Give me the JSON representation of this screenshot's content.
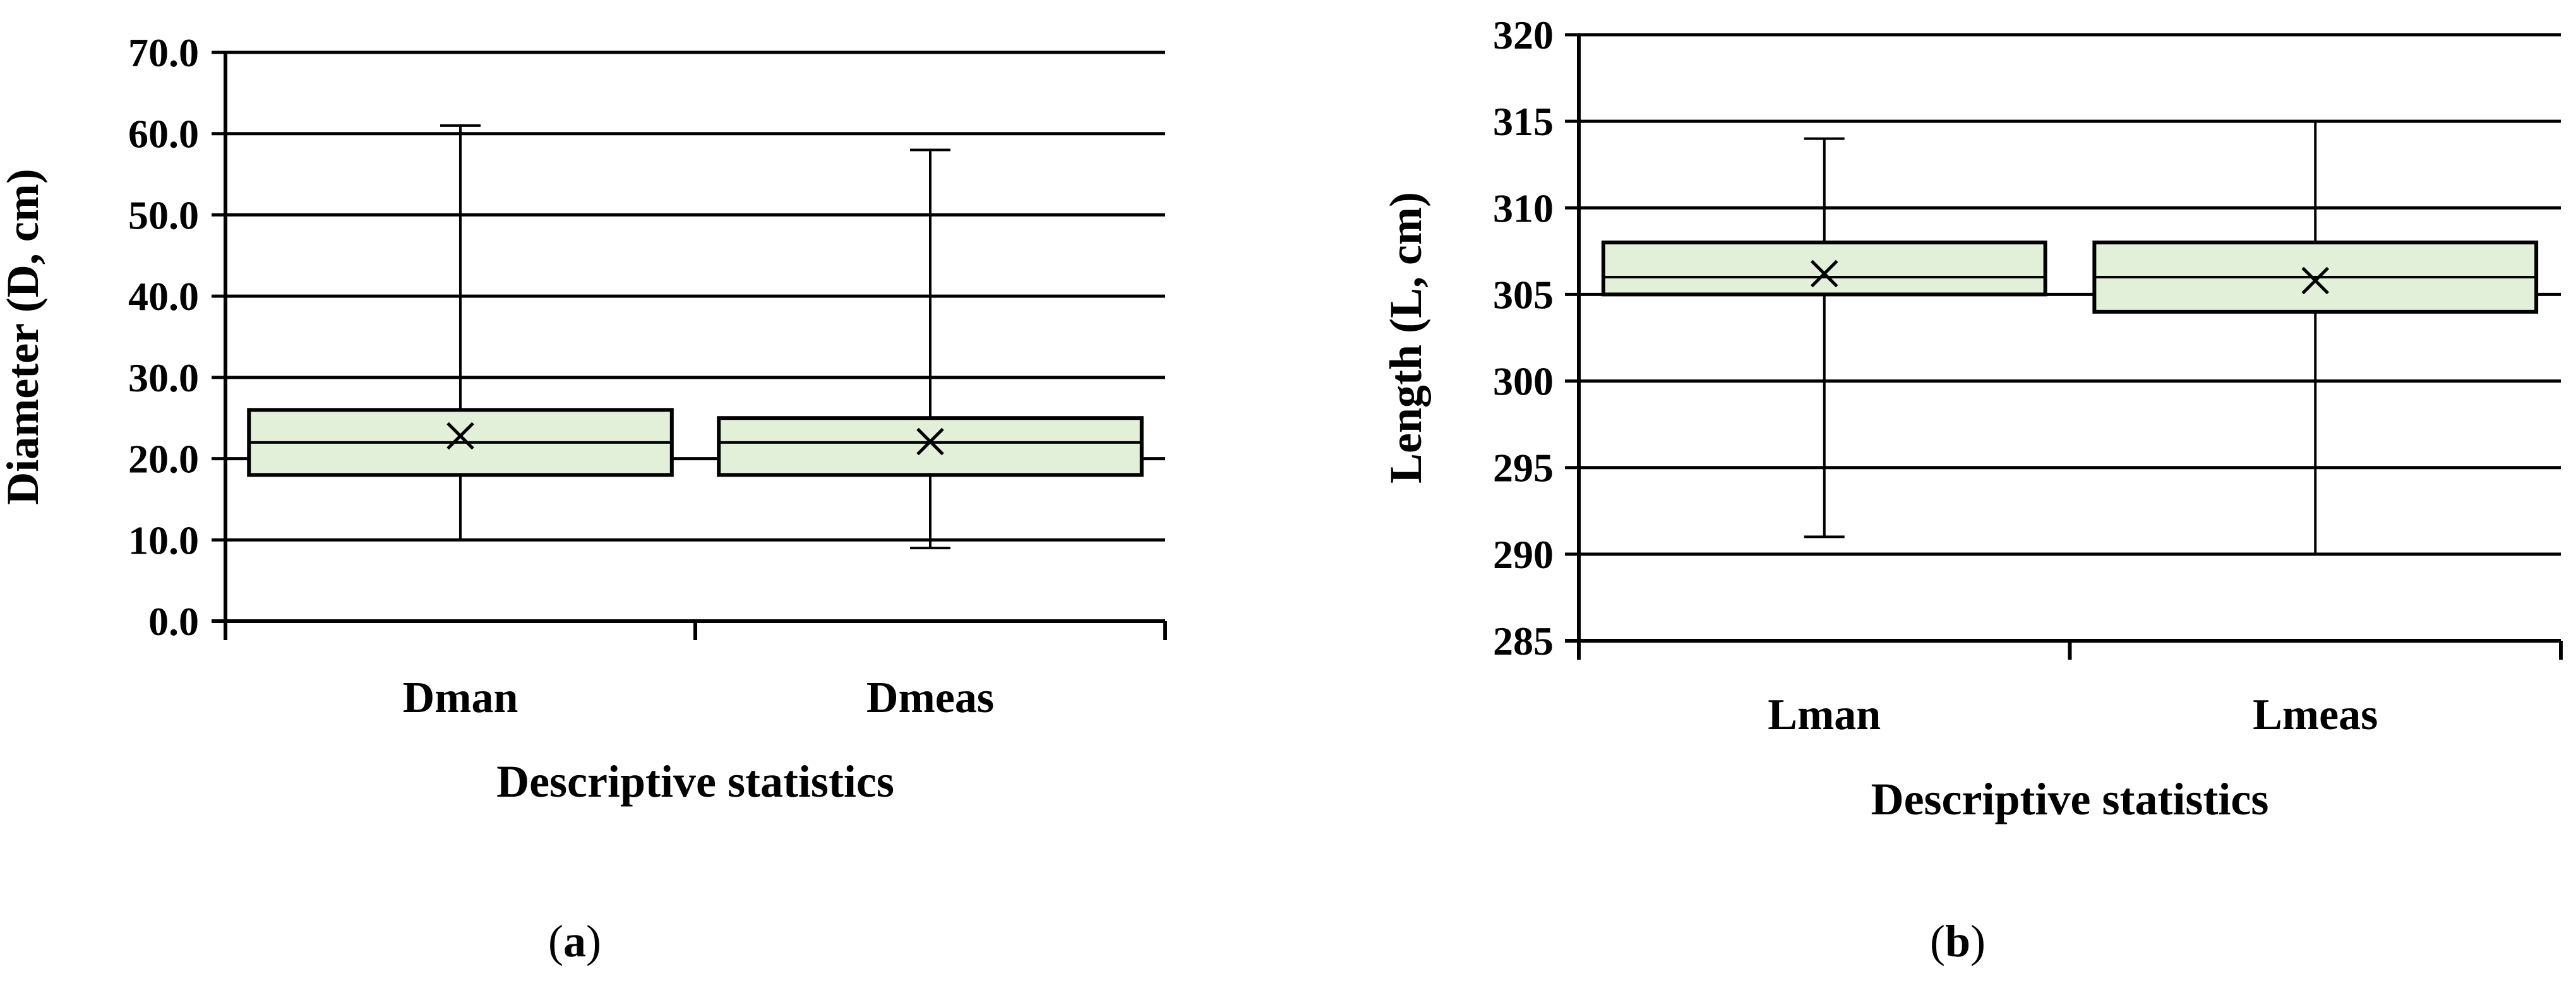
{
  "colors": {
    "box_fill": "#e2efd9",
    "stroke": "#000000",
    "background": "#ffffff"
  },
  "chart_data": [
    {
      "type": "box",
      "panel_label": "a",
      "xlabel": "Descriptive statistics",
      "ylabel": "Diameter (D, cm)",
      "ylim": [
        0,
        70
      ],
      "yticks": [
        "0.0",
        "10.0",
        "20.0",
        "30.0",
        "40.0",
        "50.0",
        "60.0",
        "70.0"
      ],
      "grid": true,
      "categories": [
        "Dman",
        "Dmeas"
      ],
      "boxes": [
        {
          "category": "Dman",
          "min": 10,
          "q1": 18,
          "median": 22,
          "q3": 26,
          "max": 61,
          "mean": 22.8
        },
        {
          "category": "Dmeas",
          "min": 9,
          "q1": 18,
          "median": 22,
          "q3": 25,
          "max": 58,
          "mean": 22.1
        }
      ]
    },
    {
      "type": "box",
      "panel_label": "b",
      "xlabel": "Descriptive statistics",
      "ylabel": "Length (L, cm)",
      "ylim": [
        285,
        320
      ],
      "yticks": [
        "285",
        "290",
        "295",
        "300",
        "305",
        "310",
        "315",
        "320"
      ],
      "grid": true,
      "categories": [
        "Lman",
        "Lmeas"
      ],
      "boxes": [
        {
          "category": "Lman",
          "min": 291,
          "q1": 305,
          "median": 306,
          "q3": 308,
          "max": 314,
          "mean": 306.2
        },
        {
          "category": "Lmeas",
          "min": 290,
          "q1": 304,
          "median": 306,
          "q3": 308,
          "max": 315,
          "mean": 305.8
        }
      ]
    }
  ]
}
